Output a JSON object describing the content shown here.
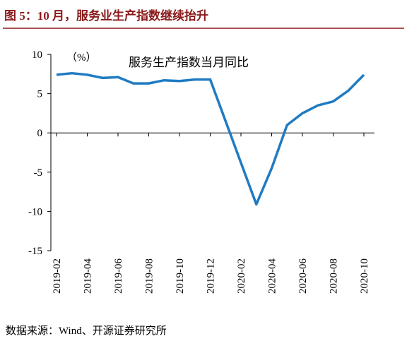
{
  "chart_data": {
    "type": "line",
    "title": "图 5：10 月，服务业生产指数继续抬升",
    "unit_label": "（%）",
    "source": "数据来源：Wind、开源证券研究所",
    "categories": [
      "2019-02",
      null,
      "2019-04",
      null,
      "2019-06",
      null,
      "2019-08",
      null,
      "2019-10",
      null,
      "2019-12",
      null,
      "2020-02",
      null,
      "2020-04",
      null,
      "2020-06",
      null,
      "2020-08",
      null,
      "2020-10"
    ],
    "series": [
      {
        "name": "服务生产指数当月同比",
        "color": "#1f7bc3",
        "values": [
          7.4,
          7.6,
          7.4,
          7.0,
          7.1,
          6.3,
          6.3,
          6.7,
          6.6,
          6.8,
          6.8,
          null,
          null,
          -9.1,
          -4.5,
          1.0,
          2.5,
          3.5,
          4.0,
          5.4,
          7.4
        ]
      }
    ],
    "ylim": [
      -15,
      10
    ],
    "yticks": [
      -15,
      -10,
      -5,
      0,
      5,
      10
    ],
    "grid": false
  }
}
